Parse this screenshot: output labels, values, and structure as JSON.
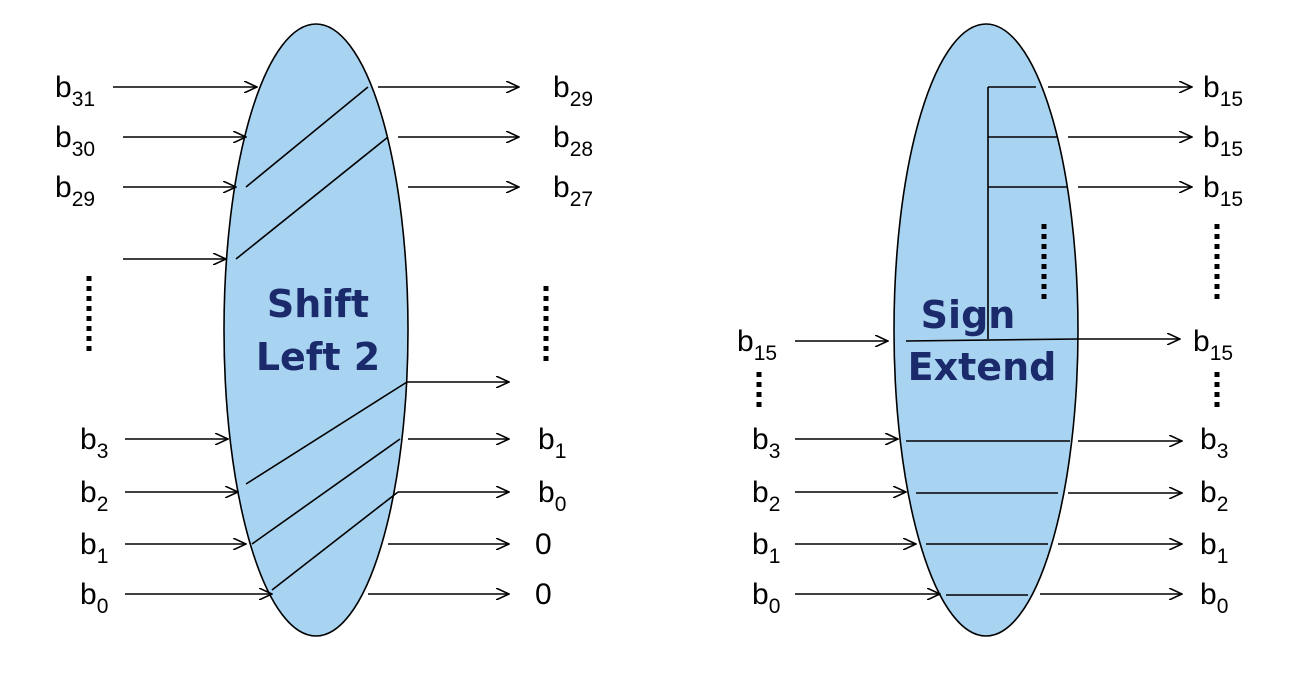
{
  "colors": {
    "ellipse_fill": "#a8d4f2",
    "title": "#1b2a6b",
    "line": "#000000"
  },
  "shift_left": {
    "title_line1": "Shift",
    "title_line2": "Left 2",
    "inputs": [
      {
        "base": "b",
        "sub": "31"
      },
      {
        "base": "b",
        "sub": "30"
      },
      {
        "base": "b",
        "sub": "29"
      },
      {
        "base": "b",
        "sub": "3"
      },
      {
        "base": "b",
        "sub": "2"
      },
      {
        "base": "b",
        "sub": "1"
      },
      {
        "base": "b",
        "sub": "0"
      }
    ],
    "outputs": [
      {
        "base": "b",
        "sub": "29"
      },
      {
        "base": "b",
        "sub": "28"
      },
      {
        "base": "b",
        "sub": "27"
      },
      {
        "base": "b",
        "sub": "1"
      },
      {
        "base": "b",
        "sub": "0"
      },
      {
        "base": "0",
        "sub": ""
      },
      {
        "base": "0",
        "sub": ""
      }
    ]
  },
  "sign_extend": {
    "title_line1": "Sign",
    "title_line2": "Extend",
    "inputs": [
      {
        "base": "b",
        "sub": "15"
      },
      {
        "base": "b",
        "sub": "3"
      },
      {
        "base": "b",
        "sub": "2"
      },
      {
        "base": "b",
        "sub": "1"
      },
      {
        "base": "b",
        "sub": "0"
      }
    ],
    "outputs": [
      {
        "base": "b",
        "sub": "15"
      },
      {
        "base": "b",
        "sub": "15"
      },
      {
        "base": "b",
        "sub": "15"
      },
      {
        "base": "b",
        "sub": "15"
      },
      {
        "base": "b",
        "sub": "3"
      },
      {
        "base": "b",
        "sub": "2"
      },
      {
        "base": "b",
        "sub": "1"
      },
      {
        "base": "b",
        "sub": "0"
      }
    ]
  }
}
